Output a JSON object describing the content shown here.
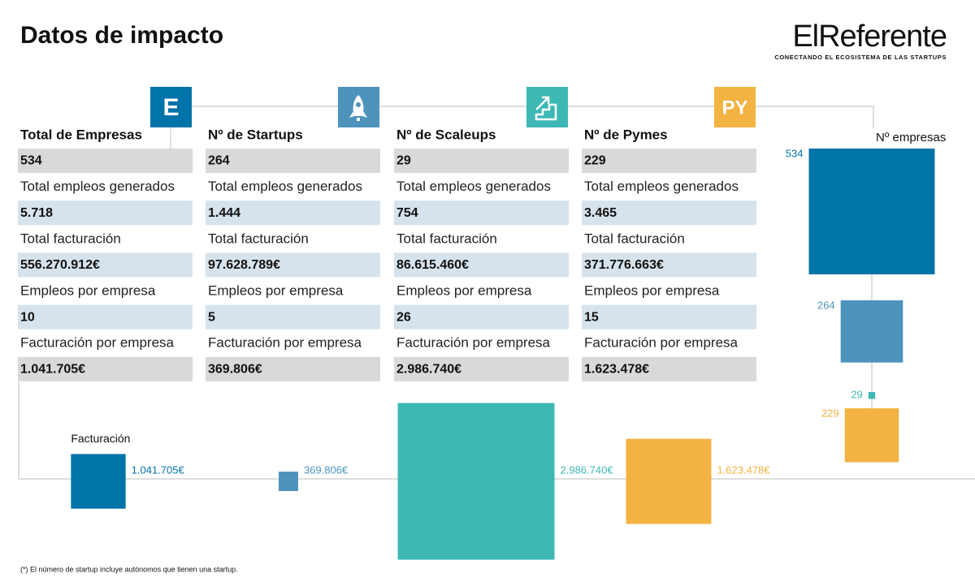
{
  "header": {
    "title": "Datos de impacto",
    "logo": "ElReferente",
    "tagline": "CONECTANDO EL ECOSISTEMA DE LAS STARTUPS"
  },
  "columns": [
    {
      "icon": "E",
      "color": "#0073a8",
      "heading": "Total de Empresas",
      "cells": [
        "534",
        "Total empleos generados",
        "5.718",
        "Total facturación",
        "556.270.912€",
        "Empleos por empresa",
        "10",
        "Facturación por empresa",
        "1.041.705€"
      ]
    },
    {
      "color": "#4d93bb",
      "heading": "Nº de Startups",
      "cells": [
        "264",
        "Total empleos generados",
        "1.444",
        "Total facturación",
        "97.628.789€",
        "Empleos por empresa",
        "5",
        "Facturación por empresa",
        "369.806€"
      ]
    },
    {
      "color": "#3db8b5",
      "heading": "Nº de Scaleups",
      "cells": [
        "29",
        "Total empleos generados",
        "754",
        "Total facturación",
        "86.615.460€",
        "Empleos por empresa",
        "26",
        "Facturación por empresa",
        "2.986.740€"
      ]
    },
    {
      "icon": "PY",
      "color": "#f3b342",
      "heading": "Nº de Pymes",
      "cells": [
        "229",
        "Total empleos generados",
        "3.465",
        "Total facturación",
        "371.776.663€",
        "Empleos por empresa",
        "15",
        "Facturación por empresa",
        "1.623.478€"
      ]
    }
  ],
  "empresas_chart": {
    "title": "Nº empresas",
    "values": [
      534,
      264,
      29,
      229
    ],
    "colors": [
      "#0073a8",
      "#4d93bb",
      "#3db8b5",
      "#f3b342"
    ]
  },
  "facturacion_chart": {
    "title": "Facturación",
    "values": [
      1041705,
      369806,
      2986740,
      1623478
    ],
    "value_labels": [
      "1.041.705€",
      "369.806€",
      "2.986.740€",
      "1.623.478€"
    ],
    "colors": [
      "#0073a8",
      "#4d93bb",
      "#3db8b5",
      "#f3b342"
    ]
  },
  "footnote": "(*) El número de startup incluye autónomos que tienen una startup."
}
